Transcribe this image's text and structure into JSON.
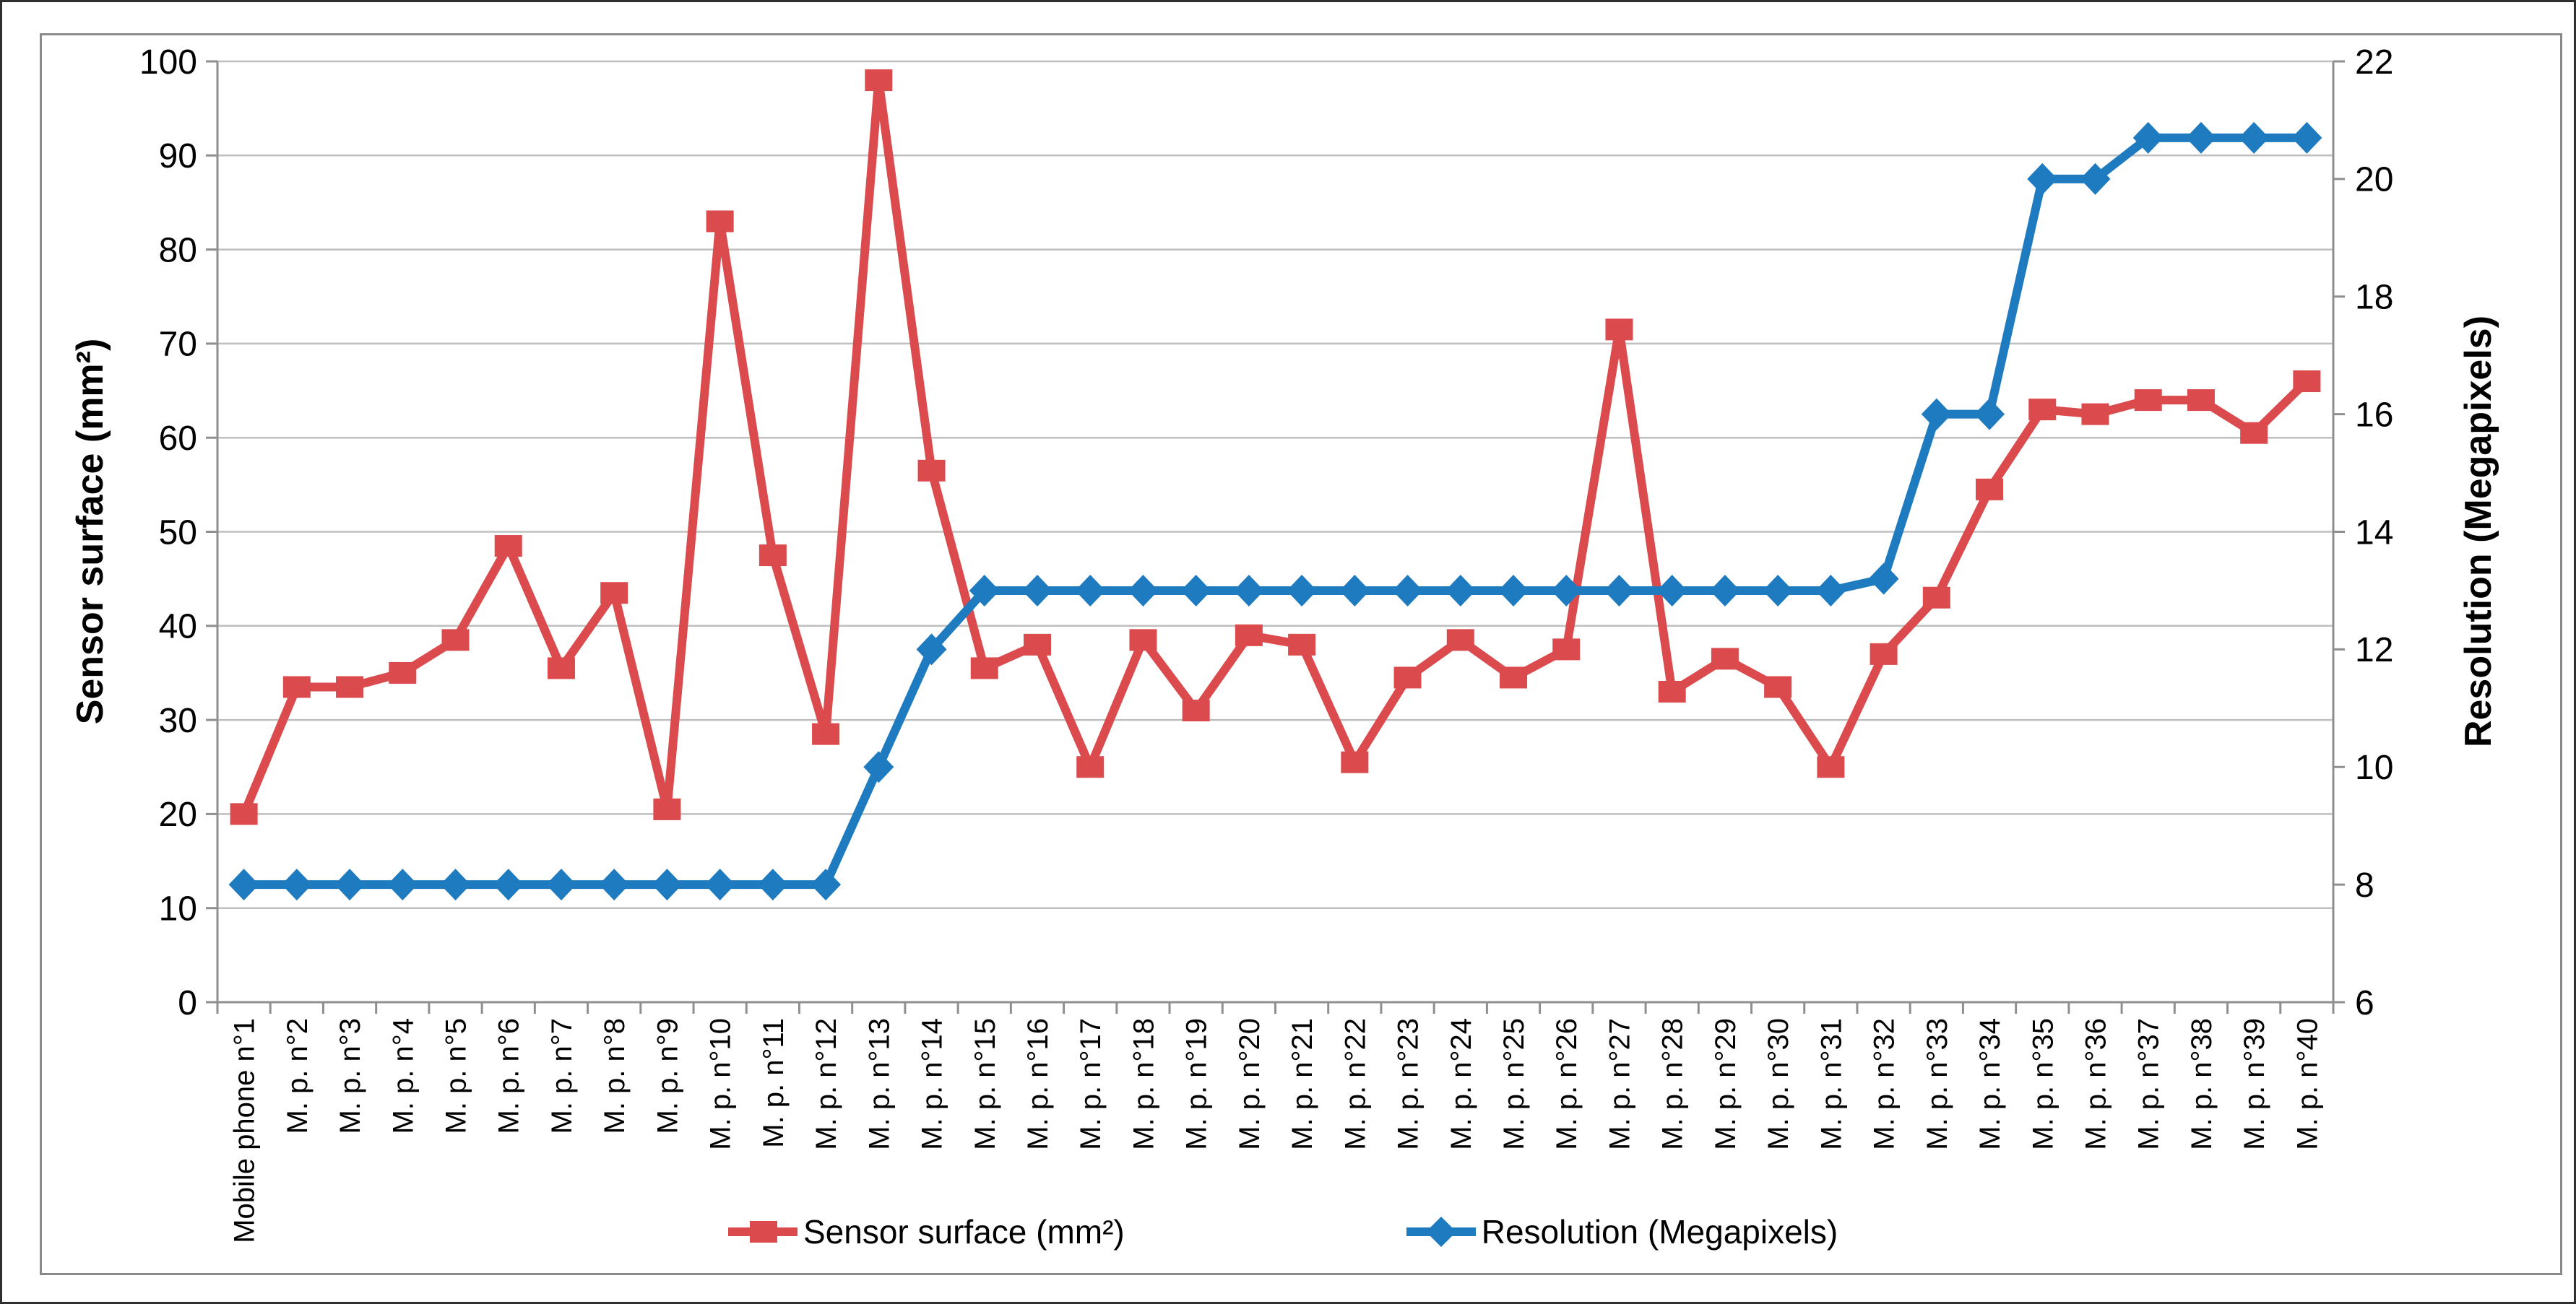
{
  "chart_data": {
    "type": "line",
    "title": "",
    "categories": [
      "Mobile phone n°1",
      "M. p. n°2",
      "M. p. n°3",
      "M. p. n°4",
      "M. p. n°5",
      "M. p. n°6",
      "M. p. n°7",
      "M. p. n°8",
      "M. p. n°9",
      "M. p. n°10",
      "M. p. n°11",
      "M. p. n°12",
      "M. p. n°13",
      "M. p. n°14",
      "M. p. n°15",
      "M. p. n°16",
      "M. p. n°17",
      "M. p. n°18",
      "M. p. n°19",
      "M. p. n°20",
      "M. p. n°21",
      "M. p. n°22",
      "M. p. n°23",
      "M. p. n°24",
      "M. p. n°25",
      "M. p. n°26",
      "M. p. n°27",
      "M. p. n°28",
      "M. p. n°29",
      "M. p. n°30",
      "M. p. n°31",
      "M. p. n°32",
      "M. p. n°33",
      "M. p. n°34",
      "M. p. n°35",
      "M. p. n°36",
      "M. p. n°37",
      "M. p. n°38",
      "M. p. n°39",
      "M. p. n°40"
    ],
    "series": [
      {
        "name": "Sensor surface (mm²)",
        "axis": "left",
        "marker": "square",
        "color": "#DB4A4D",
        "values": [
          20,
          33.5,
          33.5,
          35,
          38.5,
          48.5,
          35.5,
          43.5,
          20.5,
          83,
          47.5,
          28.5,
          98,
          56.5,
          35.5,
          38,
          25,
          38.5,
          31,
          39,
          38,
          25.5,
          34.5,
          38.5,
          34.5,
          37.5,
          71.5,
          33,
          36.5,
          33.5,
          25,
          37,
          43,
          54.5,
          63,
          62.5,
          64,
          64,
          60.5,
          66
        ]
      },
      {
        "name": "Resolution (Megapixels)",
        "axis": "right",
        "marker": "diamond",
        "color": "#1F7BBF",
        "values": [
          8,
          8,
          8,
          8,
          8,
          8,
          8,
          8,
          8,
          8,
          8,
          8,
          10,
          12,
          13,
          13,
          13,
          13,
          13,
          13,
          13,
          13,
          13,
          13,
          13,
          13,
          13,
          13,
          13,
          13,
          13,
          13.2,
          16,
          16,
          20,
          20,
          20.7,
          20.7,
          20.7,
          20.7
        ]
      }
    ],
    "left_axis": {
      "title": "Sensor surface (mm²)",
      "min": 0,
      "max": 100,
      "step": 10,
      "ticks": [
        0,
        10,
        20,
        30,
        40,
        50,
        60,
        70,
        80,
        90,
        100
      ]
    },
    "right_axis": {
      "title": "Resolution (Megapixels)",
      "min": 6,
      "max": 22,
      "step": 2,
      "ticks": [
        6,
        8,
        10,
        12,
        14,
        16,
        18,
        20,
        22
      ]
    },
    "grid": true,
    "legend_position": "bottom"
  },
  "colors": {
    "red": "#DB4A4D",
    "blue": "#1F7BBF",
    "gridline": "#BFBFBF",
    "axis_line": "#8F8F8F",
    "text": "#000000",
    "frame": "#8A8A8A"
  }
}
